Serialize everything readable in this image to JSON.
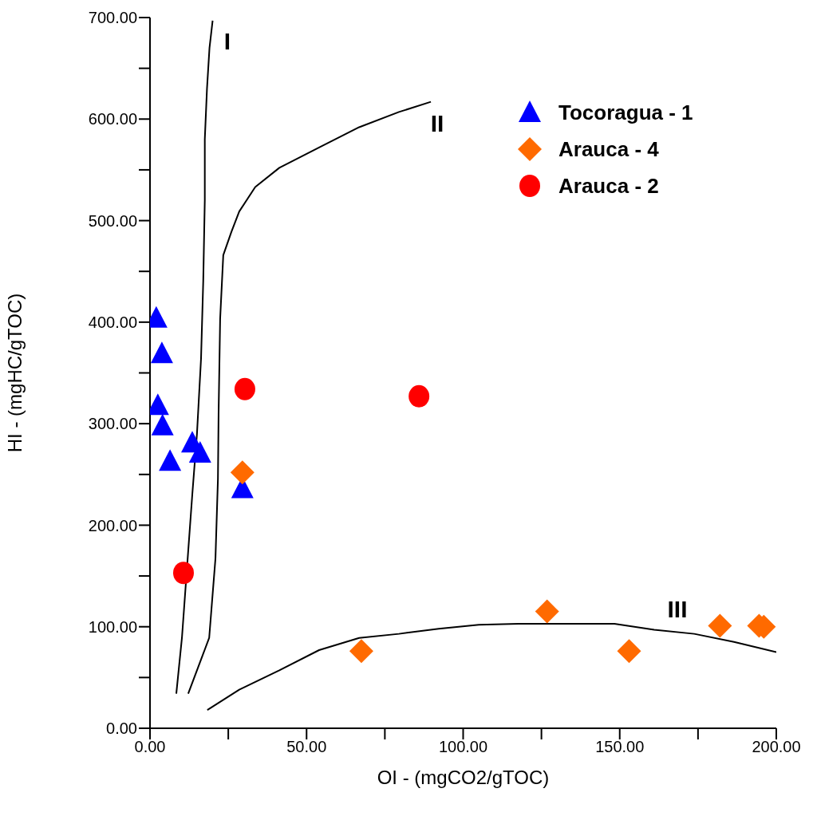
{
  "chart_data": {
    "type": "scatter",
    "xlabel": "OI - (mgCO2/gTOC)",
    "ylabel": "HI - (mgHC/gTOC)",
    "xlim": [
      0,
      200
    ],
    "ylim": [
      0,
      700
    ],
    "xticks": [
      {
        "value": 0,
        "label": "0.00"
      },
      {
        "value": 25,
        "label": null
      },
      {
        "value": 50,
        "label": "50.00"
      },
      {
        "value": 75,
        "label": null
      },
      {
        "value": 100,
        "label": "100.00"
      },
      {
        "value": 125,
        "label": null
      },
      {
        "value": 150,
        "label": "150.00"
      },
      {
        "value": 175,
        "label": null
      },
      {
        "value": 200,
        "label": "200.00"
      }
    ],
    "yticks": [
      {
        "value": 0,
        "label": "0.00"
      },
      {
        "value": 50,
        "label": null
      },
      {
        "value": 100,
        "label": "100.00"
      },
      {
        "value": 150,
        "label": null
      },
      {
        "value": 200,
        "label": "200.00"
      },
      {
        "value": 250,
        "label": null
      },
      {
        "value": 300,
        "label": "300.00"
      },
      {
        "value": 350,
        "label": null
      },
      {
        "value": 400,
        "label": "400.00"
      },
      {
        "value": 450,
        "label": null
      },
      {
        "value": 500,
        "label": "500.00"
      },
      {
        "value": 550,
        "label": null
      },
      {
        "value": 600,
        "label": "600.00"
      },
      {
        "value": 650,
        "label": null
      },
      {
        "value": 700,
        "label": "700.00"
      }
    ],
    "grid": false,
    "legend": "top right",
    "annotations": [
      "I",
      "II",
      "III"
    ],
    "series": [
      {
        "name": "Tocoragua - 1",
        "color": "#0000ff",
        "marker": "triangle",
        "x": [
          2,
          3.8,
          2.5,
          4,
          6.4,
          13.5,
          16,
          29.5
        ],
        "values": [
          404,
          369,
          318,
          298,
          263,
          281,
          271,
          236
        ]
      },
      {
        "name": "Arauca - 4",
        "color": "#ff6a00",
        "marker": "diamond",
        "x": [
          29.5,
          67.5,
          126.8,
          153,
          182,
          194.5,
          196
        ],
        "values": [
          252,
          76,
          115,
          76,
          101,
          101,
          100
        ]
      },
      {
        "name": "Arauca - 2",
        "color": "#ff0000",
        "marker": "circle",
        "x": [
          10.7,
          30.3,
          85.9
        ],
        "values": [
          153,
          334,
          327
        ]
      },
      {
        "type": "line",
        "color": "#000000",
        "marker": "none",
        "line_style": "solid",
        "x": [
          8.4,
          10.2,
          13.5,
          15,
          16.3,
          17,
          17.5,
          17.5,
          18.2,
          19,
          20
        ],
        "values": [
          34,
          89,
          230,
          290,
          364,
          440,
          520,
          580,
          630,
          670,
          697
        ]
      },
      {
        "type": "line",
        "color": "#000000",
        "marker": "none",
        "line_style": "solid",
        "x": [
          12.2,
          18.9,
          20.9,
          21.7,
          21.9,
          22.4,
          23.4,
          26,
          28.5,
          33.6,
          41.3,
          54,
          66.8,
          79.5,
          89.7
        ],
        "values": [
          34,
          89,
          167,
          246,
          309,
          403,
          466,
          489,
          509,
          533,
          552,
          572,
          592,
          607,
          617
        ]
      },
      {
        "type": "line",
        "color": "#000000",
        "marker": "none",
        "line_style": "solid",
        "x": [
          18.3,
          28.5,
          41.3,
          54,
          66.8,
          79.5,
          92.2,
          105,
          117.7,
          130.4,
          148.3,
          161,
          173.8,
          186.5,
          200
        ],
        "values": [
          18,
          38,
          57,
          77,
          89,
          93,
          98,
          102,
          103,
          103,
          103,
          97,
          93,
          85,
          75
        ]
      }
    ]
  }
}
